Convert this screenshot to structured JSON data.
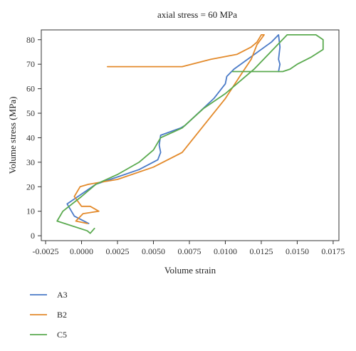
{
  "chart_data": {
    "type": "line",
    "title": "axial stress = 60 MPa",
    "xlabel": "Volume strain",
    "ylabel": "Volume stress (MPa)",
    "xlim": [
      -0.0028,
      0.0179
    ],
    "ylim": [
      -2,
      84
    ],
    "x_ticks": [
      -0.0025,
      0,
      0.0025,
      0.005,
      0.0075,
      0.01,
      0.0125,
      0.015,
      0.0175
    ],
    "x_tick_labels": [
      "-0.0025",
      "0.0000",
      "0.0025",
      "0.0050",
      "0.0075",
      "0.0100",
      "0.0125",
      "0.0150",
      "0.0175"
    ],
    "y_ticks": [
      0,
      10,
      20,
      30,
      40,
      50,
      60,
      70,
      80
    ],
    "y_tick_labels": [
      "0",
      "10",
      "20",
      "30",
      "40",
      "50",
      "60",
      "70",
      "80"
    ],
    "grid": false,
    "legend_position": "bottom-left",
    "series": [
      {
        "name": "A3",
        "color": "#4a7ac7",
        "x": [
          0.0005,
          -0.0005,
          -0.001,
          0.0,
          0.001,
          0.002,
          0.004,
          0.0053,
          0.0055,
          0.0054,
          0.0055,
          0.0069,
          0.0072,
          0.0092,
          0.01,
          0.0101,
          0.0106,
          0.0132,
          0.0137,
          0.0138,
          0.0137,
          0.0138,
          0.0137
        ],
        "y": [
          5,
          8,
          13,
          17,
          21,
          23,
          27,
          31,
          34,
          37,
          41,
          44,
          45,
          56,
          62,
          65,
          68,
          79,
          82,
          77,
          72,
          70,
          67
        ]
      },
      {
        "name": "B2",
        "color": "#e38a2b",
        "x": [
          0.0004,
          -0.0004,
          0.0001,
          0.0012,
          0.0006,
          0.0,
          -0.0005,
          -0.0001,
          0.0005,
          0.0025,
          0.005,
          0.007,
          0.0085,
          0.01,
          0.011,
          0.0118,
          0.0122,
          0.0127,
          0.0125,
          0.0122,
          0.0118,
          0.0108,
          0.009,
          0.007,
          0.0045,
          0.0018
        ],
        "y": [
          5,
          6,
          9,
          10,
          12,
          12,
          16,
          20,
          21,
          23,
          28,
          34,
          45,
          56,
          65,
          72,
          78,
          82,
          82,
          79,
          77,
          74,
          72,
          69,
          69,
          69
        ]
      },
      {
        "name": "C5",
        "color": "#5aaa4f",
        "x": [
          0.0009,
          0.0006,
          0.0004,
          -0.0017,
          -0.0013,
          0.0,
          0.001,
          0.0025,
          0.004,
          0.005,
          0.0055,
          0.007,
          0.0085,
          0.01,
          0.012,
          0.0143,
          0.0163,
          0.0168,
          0.0168,
          0.016,
          0.015,
          0.0145,
          0.014,
          0.0105
        ],
        "y": [
          3,
          1,
          2,
          6,
          10,
          16,
          21,
          25,
          30,
          35,
          40,
          44,
          52,
          58,
          68,
          82,
          82,
          80,
          76,
          73,
          70,
          68,
          67,
          67
        ]
      }
    ]
  }
}
